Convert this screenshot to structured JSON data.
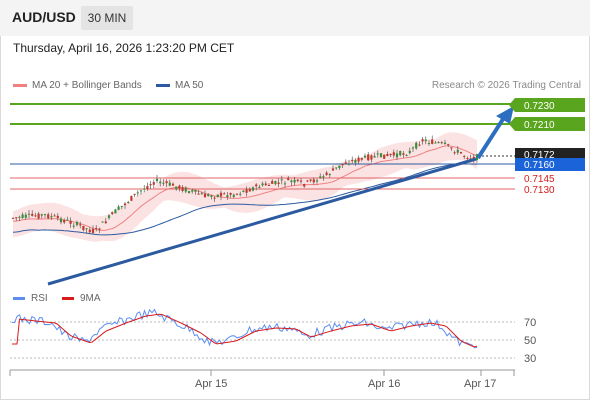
{
  "header": {
    "symbol": "AUD/USD",
    "timeframe": "30 MIN"
  },
  "datetime": "Thursday, April 16, 2026 1:23:20 PM CET",
  "legend": {
    "ma20_label": "MA 20 + Bollinger Bands",
    "ma50_label": "MA 50",
    "credit": "Research © 2026 Trading Central"
  },
  "colors": {
    "resistance": "#5aa51e",
    "support": "#e06666",
    "current": "#222222",
    "pivot": "#1a63d8",
    "trend": "#2c5aa0",
    "ma20": "#f08080",
    "ma50": "#2c5aa0",
    "rsi": "#5b8ef0",
    "rsi_ma": "#d81b1b"
  },
  "price_levels": {
    "resistance_2": "0.7230",
    "resistance_1": "0.7210",
    "current": "0.7172",
    "pivot": "0.7160",
    "support_1": "0.7145",
    "support_2": "0.7130"
  },
  "rsi": {
    "label": "RSI",
    "ma_label": "9MA",
    "levels": [
      "70",
      "50",
      "30"
    ]
  },
  "x_axis": {
    "ticks": [
      "Apr 15",
      "Apr 16",
      "Apr 17"
    ]
  }
}
